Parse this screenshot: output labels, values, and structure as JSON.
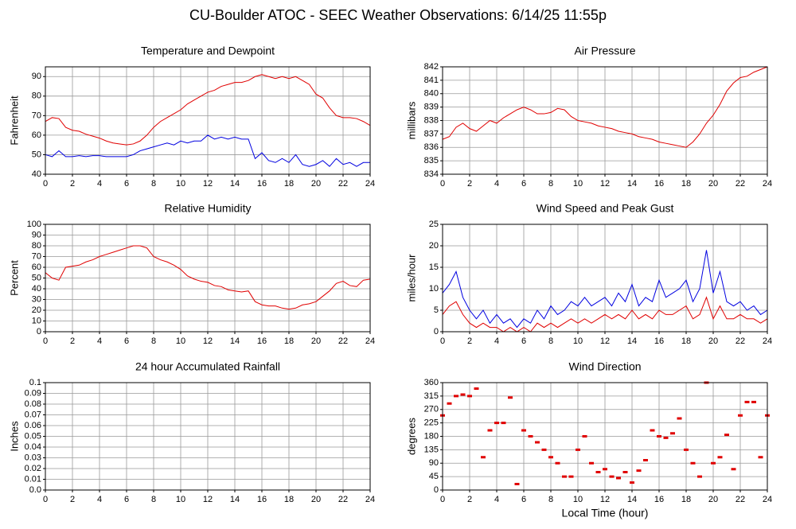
{
  "title": "CU-Boulder ATOC - SEEC Weather Observations: 6/14/25 11:55p",
  "chart_data": [
    {
      "type": "line",
      "title": "Temperature and Dewpoint",
      "ylabel": "Fahrenheit",
      "xlim": [
        0,
        24
      ],
      "xticks": [
        0,
        2,
        4,
        6,
        8,
        10,
        12,
        14,
        16,
        18,
        20,
        22,
        24
      ],
      "ylim": [
        40,
        95
      ],
      "yticks": [
        40,
        50,
        60,
        70,
        80,
        90
      ],
      "grid": true,
      "x": [
        0,
        0.5,
        1,
        1.5,
        2,
        2.5,
        3,
        3.5,
        4,
        4.5,
        5,
        5.5,
        6,
        6.5,
        7,
        7.5,
        8,
        8.5,
        9,
        9.5,
        10,
        10.5,
        11,
        11.5,
        12,
        12.5,
        13,
        13.5,
        14,
        14.5,
        15,
        15.5,
        16,
        16.5,
        17,
        17.5,
        18,
        18.5,
        19,
        19.5,
        20,
        20.5,
        21,
        21.5,
        22,
        22.5,
        23,
        23.5,
        24
      ],
      "series": [
        {
          "color": "#e00000",
          "values": [
            67,
            69,
            68.5,
            64,
            62.5,
            62,
            60.5,
            59.5,
            58.5,
            57,
            56,
            55.5,
            55,
            55.5,
            57,
            60,
            64,
            67,
            69,
            71,
            73,
            76,
            78,
            80,
            82,
            83,
            85,
            86,
            87,
            87,
            88,
            90,
            91,
            90,
            89,
            90,
            89,
            90,
            88,
            86,
            81,
            79,
            74,
            70,
            69,
            69,
            68.5,
            67,
            65
          ]
        },
        {
          "color": "#0000e0",
          "values": [
            50,
            49,
            52,
            49,
            49,
            49.5,
            49,
            49.5,
            49.5,
            49,
            49,
            49,
            49,
            50,
            52,
            53,
            54,
            55,
            56,
            55,
            57,
            56,
            57,
            57,
            60,
            58,
            59,
            58,
            59,
            58,
            58,
            48,
            51,
            47,
            46,
            48,
            46,
            50,
            45,
            44,
            45,
            47,
            44,
            48,
            45,
            46,
            44,
            46,
            46
          ]
        }
      ]
    },
    {
      "type": "line",
      "title": "Air Pressure",
      "ylabel": "millibars",
      "xlim": [
        0,
        24
      ],
      "xticks": [
        0,
        2,
        4,
        6,
        8,
        10,
        12,
        14,
        16,
        18,
        20,
        22,
        24
      ],
      "ylim": [
        834,
        842
      ],
      "yticks": [
        834,
        835,
        836,
        837,
        838,
        839,
        840,
        841,
        842
      ],
      "grid": true,
      "x": [
        0,
        0.5,
        1,
        1.5,
        2,
        2.5,
        3,
        3.5,
        4,
        4.5,
        5,
        5.5,
        6,
        6.5,
        7,
        7.5,
        8,
        8.5,
        9,
        9.5,
        10,
        10.5,
        11,
        11.5,
        12,
        12.5,
        13,
        13.5,
        14,
        14.5,
        15,
        15.5,
        16,
        16.5,
        17,
        17.5,
        18,
        18.5,
        19,
        19.5,
        20,
        20.5,
        21,
        21.5,
        22,
        22.5,
        23,
        23.5,
        24
      ],
      "series": [
        {
          "color": "#e00000",
          "values": [
            836.6,
            836.8,
            837.5,
            837.8,
            837.4,
            837.2,
            837.6,
            838,
            837.8,
            838.2,
            838.5,
            838.8,
            839,
            838.8,
            838.5,
            838.5,
            838.6,
            838.9,
            838.8,
            838.3,
            838,
            837.9,
            837.8,
            837.6,
            837.5,
            837.4,
            837.2,
            837.1,
            837,
            836.8,
            836.7,
            836.6,
            836.4,
            836.3,
            836.2,
            836.1,
            836,
            836.4,
            837,
            837.8,
            838.4,
            839.2,
            840.2,
            840.8,
            841.2,
            841.3,
            841.6,
            841.8,
            842
          ]
        }
      ]
    },
    {
      "type": "line",
      "title": "Relative Humidity",
      "ylabel": "Percent",
      "xlim": [
        0,
        24
      ],
      "xticks": [
        0,
        2,
        4,
        6,
        8,
        10,
        12,
        14,
        16,
        18,
        20,
        22,
        24
      ],
      "ylim": [
        0,
        100
      ],
      "yticks": [
        0,
        10,
        20,
        30,
        40,
        50,
        60,
        70,
        80,
        90,
        100
      ],
      "grid": true,
      "x": [
        0,
        0.5,
        1,
        1.5,
        2,
        2.5,
        3,
        3.5,
        4,
        4.5,
        5,
        5.5,
        6,
        6.5,
        7,
        7.5,
        8,
        8.5,
        9,
        9.5,
        10,
        10.5,
        11,
        11.5,
        12,
        12.5,
        13,
        13.5,
        14,
        14.5,
        15,
        15.5,
        16,
        16.5,
        17,
        17.5,
        18,
        18.5,
        19,
        19.5,
        20,
        20.5,
        21,
        21.5,
        22,
        22.5,
        23,
        23.5,
        24
      ],
      "series": [
        {
          "color": "#e00000",
          "values": [
            55,
            50,
            48,
            60,
            61,
            62,
            65,
            67,
            70,
            72,
            74,
            76,
            78,
            80,
            80,
            78,
            70,
            67,
            65,
            62,
            58,
            52,
            49,
            47,
            46,
            43,
            42,
            39,
            38,
            37,
            38,
            28,
            25,
            24,
            24,
            22,
            21,
            22,
            25,
            26,
            28,
            33,
            38,
            45,
            47,
            43,
            42,
            48,
            49
          ]
        }
      ]
    },
    {
      "type": "line",
      "title": "Wind Speed and Peak Gust",
      "ylabel": "miles/hour",
      "xlim": [
        0,
        24
      ],
      "xticks": [
        0,
        2,
        4,
        6,
        8,
        10,
        12,
        14,
        16,
        18,
        20,
        22,
        24
      ],
      "ylim": [
        0,
        25
      ],
      "yticks": [
        0,
        5,
        10,
        15,
        20,
        25
      ],
      "grid": true,
      "x": [
        0,
        0.5,
        1,
        1.5,
        2,
        2.5,
        3,
        3.5,
        4,
        4.5,
        5,
        5.5,
        6,
        6.5,
        7,
        7.5,
        8,
        8.5,
        9,
        9.5,
        10,
        10.5,
        11,
        11.5,
        12,
        12.5,
        13,
        13.5,
        14,
        14.5,
        15,
        15.5,
        16,
        16.5,
        17,
        17.5,
        18,
        18.5,
        19,
        19.5,
        20,
        20.5,
        21,
        21.5,
        22,
        22.5,
        23,
        23.5,
        24
      ],
      "series": [
        {
          "color": "#0000e0",
          "values": [
            9,
            11,
            14,
            8,
            5,
            3,
            5,
            2,
            4,
            2,
            3,
            1,
            3,
            2,
            5,
            3,
            6,
            4,
            5,
            7,
            6,
            8,
            6,
            7,
            8,
            6,
            9,
            7,
            11,
            6,
            8,
            7,
            12,
            8,
            9,
            10,
            12,
            7,
            10,
            19,
            9,
            14,
            7,
            6,
            7,
            5,
            6,
            4,
            5
          ]
        },
        {
          "color": "#e00000",
          "values": [
            4,
            6,
            7,
            4,
            2,
            1,
            2,
            1,
            1,
            0,
            1,
            0,
            1,
            0,
            2,
            1,
            2,
            1,
            2,
            3,
            2,
            3,
            2,
            3,
            4,
            3,
            4,
            3,
            5,
            3,
            4,
            3,
            5,
            4,
            4,
            5,
            6,
            3,
            4,
            8,
            3,
            6,
            3,
            3,
            4,
            3,
            3,
            2,
            3
          ]
        }
      ]
    },
    {
      "type": "line",
      "title": "24 hour Accumulated Rainfall",
      "ylabel": "Inches",
      "xlim": [
        0,
        24
      ],
      "xticks": [
        0,
        2,
        4,
        6,
        8,
        10,
        12,
        14,
        16,
        18,
        20,
        22,
        24
      ],
      "ylim": [
        0,
        0.1
      ],
      "yticks": [
        {
          "value": 0,
          "label": "0.0"
        },
        0.01,
        0.02,
        0.03,
        0.04,
        0.05,
        0.06,
        0.07,
        0.08,
        0.09,
        0.1
      ],
      "grid": true,
      "x": [
        0,
        24
      ],
      "series": [
        {
          "color": "#e00000",
          "values": [
            0,
            0
          ]
        }
      ]
    },
    {
      "type": "scatter",
      "title": "Wind Direction",
      "ylabel": "degrees",
      "xlabel": "Local Time (hour)",
      "xlim": [
        0,
        24
      ],
      "xticks": [
        0,
        2,
        4,
        6,
        8,
        10,
        12,
        14,
        16,
        18,
        20,
        22,
        24
      ],
      "ylim": [
        0,
        360
      ],
      "yticks": [
        0,
        45,
        90,
        135,
        180,
        225,
        270,
        315,
        360
      ],
      "grid": true,
      "x": [
        0,
        0.5,
        1,
        1.5,
        2,
        2.5,
        3,
        3.5,
        4,
        4.5,
        5,
        5.5,
        6,
        6.5,
        7,
        7.5,
        8,
        8.5,
        9,
        9.5,
        10,
        10.5,
        11,
        11.5,
        12,
        12.5,
        13,
        13.5,
        14,
        14.5,
        15,
        15.5,
        16,
        16.5,
        17,
        17.5,
        18,
        18.5,
        19,
        19.5,
        20,
        20.5,
        21,
        21.5,
        22,
        22.5,
        23,
        23.5,
        24
      ],
      "series": [
        {
          "color": "#e00000",
          "values": [
            250,
            290,
            315,
            320,
            315,
            340,
            110,
            200,
            225,
            225,
            310,
            20,
            200,
            180,
            160,
            135,
            110,
            90,
            45,
            45,
            135,
            180,
            90,
            60,
            70,
            45,
            40,
            60,
            25,
            65,
            100,
            200,
            180,
            175,
            190,
            240,
            135,
            90,
            45,
            360,
            90,
            110,
            185,
            70,
            250,
            295,
            295,
            110,
            250
          ]
        }
      ]
    }
  ]
}
